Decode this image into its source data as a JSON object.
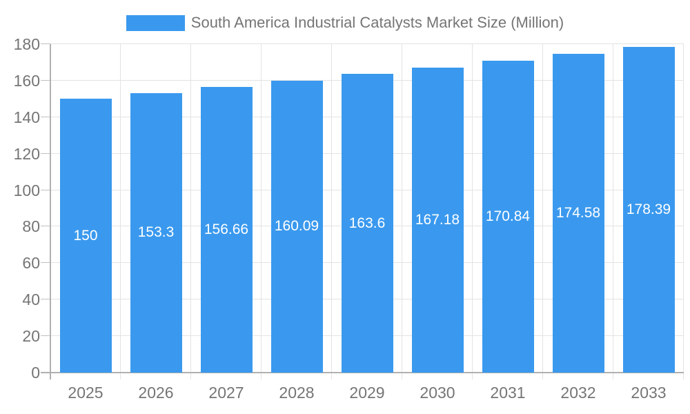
{
  "chart_data": {
    "type": "bar",
    "title": "South America Industrial Catalysts Market Size (Million)",
    "legend": {
      "label": "South America Industrial Catalysts Market Size (Million)",
      "position": "top"
    },
    "categories": [
      "2025",
      "2026",
      "2027",
      "2028",
      "2029",
      "2030",
      "2031",
      "2032",
      "2033"
    ],
    "values": [
      150,
      153.3,
      156.66,
      160.09,
      163.6,
      167.18,
      170.84,
      174.58,
      178.39
    ],
    "value_labels": [
      "150",
      "153.3",
      "156.66",
      "160.09",
      "163.6",
      "167.18",
      "170.84",
      "174.58",
      "178.39"
    ],
    "xlabel": "",
    "ylabel": "",
    "ylim": [
      0,
      180
    ],
    "yticks": [
      0,
      20,
      40,
      60,
      80,
      100,
      120,
      140,
      160,
      180
    ],
    "grid": true
  },
  "colors": {
    "bar": "#3a99ee",
    "grid": "#e3e3e3",
    "axis": "#b0b0b0",
    "tick": "#c0c0c0",
    "text": "#757575",
    "bar_label": "#ffffff",
    "background": "#ffffff"
  }
}
